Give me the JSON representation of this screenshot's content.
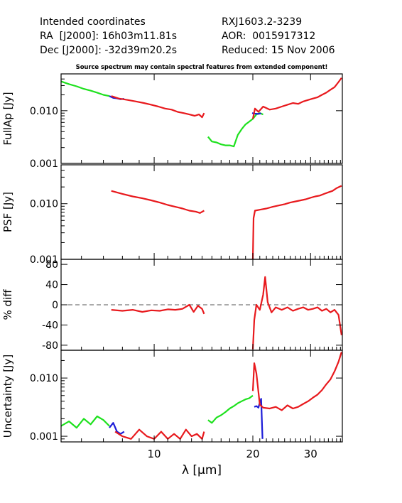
{
  "header": {
    "coords_title": "Intended coordinates",
    "ra_line": "RA  [J2000]: 16h03m11.81s",
    "dec_line": "Dec [J2000]: -32d39m20.2s",
    "object": "RXJ1603.2-3239",
    "aor_line": "AOR:  0015917312",
    "reduced_line": "Reduced: 15 Nov 2006",
    "warning": "Source spectrum may contain spectral features from extended component!"
  },
  "colors": {
    "red": "#e8191d",
    "green": "#1ee11e",
    "blue": "#1c1cd8",
    "axis": "#000000",
    "dash": "#555555"
  },
  "chart_data": {
    "type": "line",
    "x_scale": "log",
    "xlim": [
      5.2,
      37.5
    ],
    "xlabel": "λ [μm]",
    "x_ticks": [
      {
        "value": 10,
        "label": "10"
      },
      {
        "value": 20,
        "label": "20"
      },
      {
        "value": 30,
        "label": "30"
      }
    ],
    "panels": [
      {
        "id": "fullap",
        "ylabel": "FullAp [Jy]",
        "y_scale": "log",
        "ylim": [
          0.001,
          0.05
        ],
        "y_ticks": [
          {
            "value": 0.01,
            "label": "0.010"
          },
          {
            "value": 0.001,
            "label": "0.001"
          }
        ],
        "series": [
          {
            "color": "green",
            "points": [
              [
                5.2,
                0.036
              ],
              [
                5.5,
                0.032
              ],
              [
                5.8,
                0.029
              ],
              [
                6.1,
                0.026
              ],
              [
                6.4,
                0.024
              ],
              [
                6.7,
                0.022
              ],
              [
                7.0,
                0.02
              ],
              [
                7.3,
                0.019
              ]
            ]
          },
          {
            "color": "blue",
            "points": [
              [
                7.3,
                0.019
              ],
              [
                7.5,
                0.0175
              ],
              [
                7.7,
                0.0172
              ],
              [
                7.9,
                0.0165
              ],
              [
                8.1,
                0.0168
              ]
            ]
          },
          {
            "color": "red",
            "points": [
              [
                7.4,
                0.019
              ],
              [
                7.8,
                0.017
              ],
              [
                8.3,
                0.016
              ],
              [
                8.8,
                0.015
              ],
              [
                9.3,
                0.014
              ],
              [
                9.8,
                0.013
              ],
              [
                10.3,
                0.012
              ],
              [
                10.8,
                0.011
              ],
              [
                11.3,
                0.0105
              ],
              [
                11.8,
                0.0095
              ],
              [
                12.3,
                0.009
              ],
              [
                12.8,
                0.0085
              ],
              [
                13.3,
                0.008
              ],
              [
                13.7,
                0.0085
              ],
              [
                14.0,
                0.0075
              ],
              [
                14.2,
                0.009
              ]
            ]
          },
          {
            "color": "green",
            "points": [
              [
                14.6,
                0.0032
              ],
              [
                15.0,
                0.0026
              ],
              [
                15.5,
                0.0025
              ],
              [
                16.0,
                0.0023
              ],
              [
                16.5,
                0.0022
              ],
              [
                17.0,
                0.0022
              ],
              [
                17.5,
                0.0021
              ],
              [
                18.0,
                0.0035
              ],
              [
                18.5,
                0.0045
              ],
              [
                19.0,
                0.0055
              ],
              [
                19.5,
                0.0062
              ],
              [
                20.0,
                0.007
              ],
              [
                20.5,
                0.0085
              ],
              [
                21.0,
                0.009
              ],
              [
                21.5,
                0.0085
              ]
            ]
          },
          {
            "color": "blue",
            "points": [
              [
                19.9,
                0.009
              ],
              [
                20.3,
                0.0088
              ],
              [
                20.8,
                0.0087
              ],
              [
                21.2,
                0.0089
              ]
            ]
          },
          {
            "color": "red",
            "points": [
              [
                20.0,
                0.007
              ],
              [
                20.3,
                0.011
              ],
              [
                20.8,
                0.0095
              ],
              [
                21.5,
                0.012
              ],
              [
                22.5,
                0.0105
              ],
              [
                23.5,
                0.011
              ],
              [
                24.5,
                0.012
              ],
              [
                25.5,
                0.013
              ],
              [
                26.5,
                0.014
              ],
              [
                27.5,
                0.0135
              ],
              [
                28.5,
                0.015
              ],
              [
                29.5,
                0.016
              ],
              [
                30.5,
                0.017
              ],
              [
                31.5,
                0.018
              ],
              [
                32.5,
                0.02
              ],
              [
                33.5,
                0.022
              ],
              [
                34.5,
                0.025
              ],
              [
                35.5,
                0.028
              ],
              [
                36.5,
                0.035
              ],
              [
                37.3,
                0.042
              ]
            ]
          }
        ]
      },
      {
        "id": "psf",
        "ylabel": "PSF [Jy]",
        "y_scale": "log",
        "ylim": [
          0.001,
          0.05
        ],
        "y_ticks": [
          {
            "value": 0.01,
            "label": "0.010"
          },
          {
            "value": 0.001,
            "label": "0.001"
          }
        ],
        "series": [
          {
            "color": "red",
            "points": [
              [
                7.4,
                0.017
              ],
              [
                8.0,
                0.015
              ],
              [
                8.6,
                0.0135
              ],
              [
                9.2,
                0.0125
              ],
              [
                9.8,
                0.0115
              ],
              [
                10.4,
                0.0105
              ],
              [
                11.0,
                0.0095
              ],
              [
                11.6,
                0.0088
              ],
              [
                12.2,
                0.0082
              ],
              [
                12.8,
                0.0075
              ],
              [
                13.4,
                0.0072
              ],
              [
                13.8,
                0.0068
              ],
              [
                14.2,
                0.0075
              ]
            ]
          },
          {
            "color": "red",
            "points": [
              [
                20.0,
                0.001
              ],
              [
                20.1,
                0.0055
              ],
              [
                20.3,
                0.0075
              ],
              [
                21.0,
                0.0078
              ],
              [
                22.0,
                0.0082
              ],
              [
                23.0,
                0.0088
              ],
              [
                24.0,
                0.0093
              ],
              [
                25.0,
                0.0098
              ],
              [
                26.0,
                0.0105
              ],
              [
                27.0,
                0.011
              ],
              [
                28.0,
                0.0115
              ],
              [
                29.0,
                0.012
              ],
              [
                30.0,
                0.0128
              ],
              [
                31.0,
                0.0135
              ],
              [
                32.0,
                0.014
              ],
              [
                33.0,
                0.015
              ],
              [
                34.0,
                0.016
              ],
              [
                35.0,
                0.017
              ],
              [
                36.0,
                0.019
              ],
              [
                37.3,
                0.021
              ]
            ]
          }
        ]
      },
      {
        "id": "pctdiff",
        "ylabel": "% diff",
        "y_scale": "linear",
        "ylim": [
          -90,
          90
        ],
        "reference_line": 0,
        "y_ticks": [
          {
            "value": 80,
            "label": "80"
          },
          {
            "value": 40,
            "label": "40"
          },
          {
            "value": 0,
            "label": "0"
          },
          {
            "value": -40,
            "label": "-40"
          },
          {
            "value": -80,
            "label": "-80"
          }
        ],
        "series": [
          {
            "color": "red",
            "points": [
              [
                7.4,
                -10
              ],
              [
                8.0,
                -12
              ],
              [
                8.6,
                -10
              ],
              [
                9.2,
                -14
              ],
              [
                9.8,
                -11
              ],
              [
                10.4,
                -12
              ],
              [
                11.0,
                -9
              ],
              [
                11.6,
                -10
              ],
              [
                12.2,
                -8
              ],
              [
                12.8,
                0
              ],
              [
                13.2,
                -14
              ],
              [
                13.6,
                -2
              ],
              [
                14.0,
                -8
              ],
              [
                14.2,
                -18
              ]
            ]
          },
          {
            "color": "red",
            "points": [
              [
                20.0,
                -88
              ],
              [
                20.2,
                -30
              ],
              [
                20.5,
                0
              ],
              [
                21.0,
                -10
              ],
              [
                21.5,
                20
              ],
              [
                21.8,
                55
              ],
              [
                22.2,
                5
              ],
              [
                22.8,
                -15
              ],
              [
                23.5,
                -5
              ],
              [
                24.5,
                -10
              ],
              [
                25.5,
                -5
              ],
              [
                26.5,
                -12
              ],
              [
                27.5,
                -8
              ],
              [
                28.5,
                -5
              ],
              [
                29.5,
                -10
              ],
              [
                30.5,
                -8
              ],
              [
                31.5,
                -5
              ],
              [
                32.5,
                -12
              ],
              [
                33.5,
                -8
              ],
              [
                34.5,
                -15
              ],
              [
                35.5,
                -10
              ],
              [
                36.5,
                -20
              ],
              [
                37.3,
                -60
              ]
            ]
          }
        ]
      },
      {
        "id": "uncertainty",
        "ylabel": "Uncertainty [Jy]",
        "y_scale": "log",
        "ylim": [
          0.0008,
          0.03
        ],
        "y_ticks": [
          {
            "value": 0.01,
            "label": "0.010"
          },
          {
            "value": 0.001,
            "label": "0.001"
          }
        ],
        "series": [
          {
            "color": "green",
            "points": [
              [
                5.2,
                0.0015
              ],
              [
                5.5,
                0.0018
              ],
              [
                5.8,
                0.0014
              ],
              [
                6.1,
                0.002
              ],
              [
                6.4,
                0.0016
              ],
              [
                6.7,
                0.0022
              ],
              [
                7.0,
                0.0019
              ],
              [
                7.3,
                0.0015
              ]
            ]
          },
          {
            "color": "blue",
            "points": [
              [
                7.3,
                0.0014
              ],
              [
                7.5,
                0.0017
              ],
              [
                7.7,
                0.0012
              ],
              [
                7.9,
                0.0011
              ],
              [
                8.1,
                0.0012
              ]
            ]
          },
          {
            "color": "red",
            "points": [
              [
                7.6,
                0.0012
              ],
              [
                8.0,
                0.001
              ],
              [
                8.5,
                0.0009
              ],
              [
                9.0,
                0.0013
              ],
              [
                9.5,
                0.001
              ],
              [
                10.0,
                0.0009
              ],
              [
                10.5,
                0.0012
              ],
              [
                11.0,
                0.0009
              ],
              [
                11.5,
                0.0011
              ],
              [
                12.0,
                0.0009
              ],
              [
                12.5,
                0.0013
              ],
              [
                13.0,
                0.001
              ],
              [
                13.5,
                0.0011
              ],
              [
                14.0,
                0.0009
              ],
              [
                14.2,
                0.0012
              ]
            ]
          },
          {
            "color": "green",
            "points": [
              [
                14.6,
                0.0019
              ],
              [
                15.0,
                0.0017
              ],
              [
                15.5,
                0.0021
              ],
              [
                16.0,
                0.0023
              ],
              [
                16.5,
                0.0026
              ],
              [
                17.0,
                0.003
              ],
              [
                17.5,
                0.0033
              ],
              [
                18.0,
                0.0037
              ],
              [
                18.5,
                0.004
              ],
              [
                19.0,
                0.0043
              ],
              [
                19.5,
                0.0045
              ],
              [
                20.0,
                0.005
              ]
            ]
          },
          {
            "color": "blue",
            "points": [
              [
                20.2,
                0.0032
              ],
              [
                20.5,
                0.0033
              ],
              [
                20.8,
                0.0031
              ],
              [
                21.0,
                0.0038
              ],
              [
                21.2,
                0.0044
              ],
              [
                21.4,
                0.0009
              ]
            ]
          },
          {
            "color": "red",
            "points": [
              [
                20.0,
                0.006
              ],
              [
                20.2,
                0.018
              ],
              [
                20.5,
                0.012
              ],
              [
                21.0,
                0.0035
              ],
              [
                21.5,
                0.0031
              ],
              [
                22.5,
                0.003
              ],
              [
                23.5,
                0.0032
              ],
              [
                24.5,
                0.0028
              ],
              [
                25.5,
                0.0034
              ],
              [
                26.5,
                0.003
              ],
              [
                27.5,
                0.0032
              ],
              [
                28.5,
                0.0036
              ],
              [
                29.5,
                0.004
              ],
              [
                30.5,
                0.0046
              ],
              [
                31.5,
                0.0052
              ],
              [
                32.5,
                0.0062
              ],
              [
                33.5,
                0.0078
              ],
              [
                34.5,
                0.0095
              ],
              [
                35.5,
                0.013
              ],
              [
                36.5,
                0.019
              ],
              [
                37.3,
                0.028
              ]
            ]
          }
        ]
      }
    ]
  }
}
